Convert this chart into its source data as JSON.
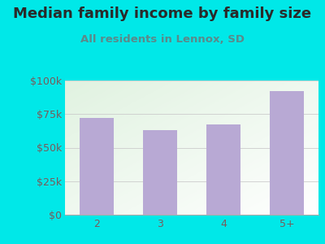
{
  "title": "Median family income by family size",
  "subtitle": "All residents in Lennox, SD",
  "categories": [
    "2",
    "3",
    "4",
    "5+"
  ],
  "values": [
    72000,
    63000,
    67000,
    92000
  ],
  "bar_color": "#b8a9d4",
  "background_color": "#00e8e8",
  "title_color": "#2a2a2a",
  "subtitle_color": "#5a8a8a",
  "tick_label_color": "#7a5a5a",
  "ylim": [
    0,
    100000
  ],
  "yticks": [
    0,
    25000,
    50000,
    75000,
    100000
  ],
  "ytick_labels": [
    "$0",
    "$25k",
    "$50k",
    "$75k",
    "$100k"
  ],
  "title_fontsize": 13,
  "subtitle_fontsize": 9.5,
  "tick_fontsize": 9
}
